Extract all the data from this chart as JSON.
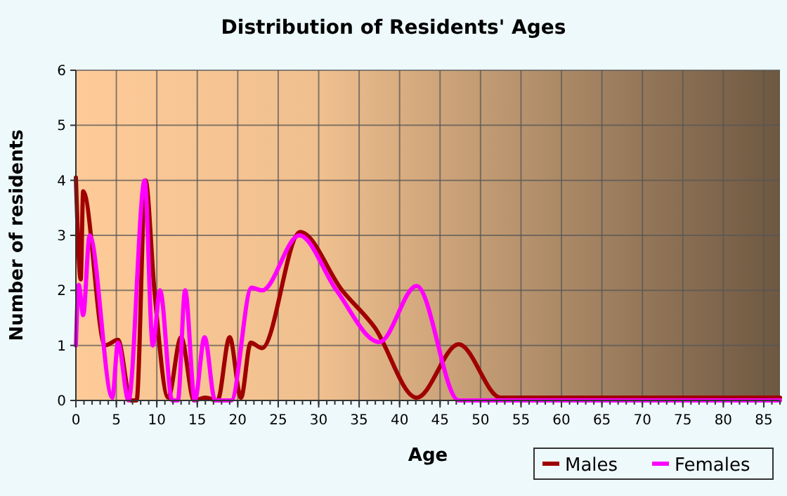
{
  "chart_data": {
    "type": "line",
    "title": "Distribution of Residents' Ages",
    "xlabel": "Age",
    "ylabel": "Number of residents",
    "xlim": [
      0,
      87
    ],
    "xticks": [
      0,
      5,
      10,
      15,
      20,
      25,
      30,
      35,
      40,
      45,
      50,
      55,
      60,
      65,
      70,
      75,
      80,
      85
    ],
    "ylim": [
      0,
      6
    ],
    "yticks": [
      0,
      1,
      2,
      3,
      4,
      5,
      6
    ],
    "grid": true,
    "legend": "bottom right",
    "marker": "none",
    "line_style": "solid",
    "series": [
      {
        "name": "Males",
        "color": "#a00000",
        "x": [
          0,
          0.6,
          0.9,
          3.6,
          5.2,
          6.8,
          7.5,
          8.6,
          9.7,
          11.4,
          13,
          14.6,
          16,
          17.5,
          19,
          20.4,
          21.6,
          23,
          27.7,
          32.9,
          36.9,
          42.1,
          47.3,
          52.5,
          60,
          70,
          80,
          87
        ],
        "values": [
          4.05,
          2.2,
          3.8,
          1.0,
          1.1,
          0,
          0,
          4.0,
          2.0,
          0.05,
          1.15,
          0,
          0.05,
          0,
          1.15,
          0.05,
          1.05,
          0.95,
          3.06,
          2.0,
          1.33,
          0.05,
          1.02,
          0.05,
          0.05,
          0.05,
          0.05,
          0.05
        ]
      },
      {
        "name": "Females",
        "color": "#ff00ff",
        "x": [
          0,
          0.35,
          0.9,
          1.7,
          4.5,
          5.2,
          6.5,
          8.5,
          9.5,
          10.4,
          11.9,
          12.6,
          13.5,
          14.7,
          15.9,
          17.2,
          19.2,
          21.7,
          23,
          27.6,
          32.2,
          37.5,
          42.1,
          47.3,
          55,
          87
        ],
        "values": [
          1.0,
          2.1,
          1.55,
          3.0,
          0.05,
          1.05,
          0,
          4.0,
          1.0,
          2.0,
          0,
          0,
          2.0,
          0,
          1.15,
          0,
          0,
          2.05,
          2.0,
          3.0,
          2.0,
          1.06,
          2.08,
          0,
          0,
          0
        ]
      }
    ]
  }
}
